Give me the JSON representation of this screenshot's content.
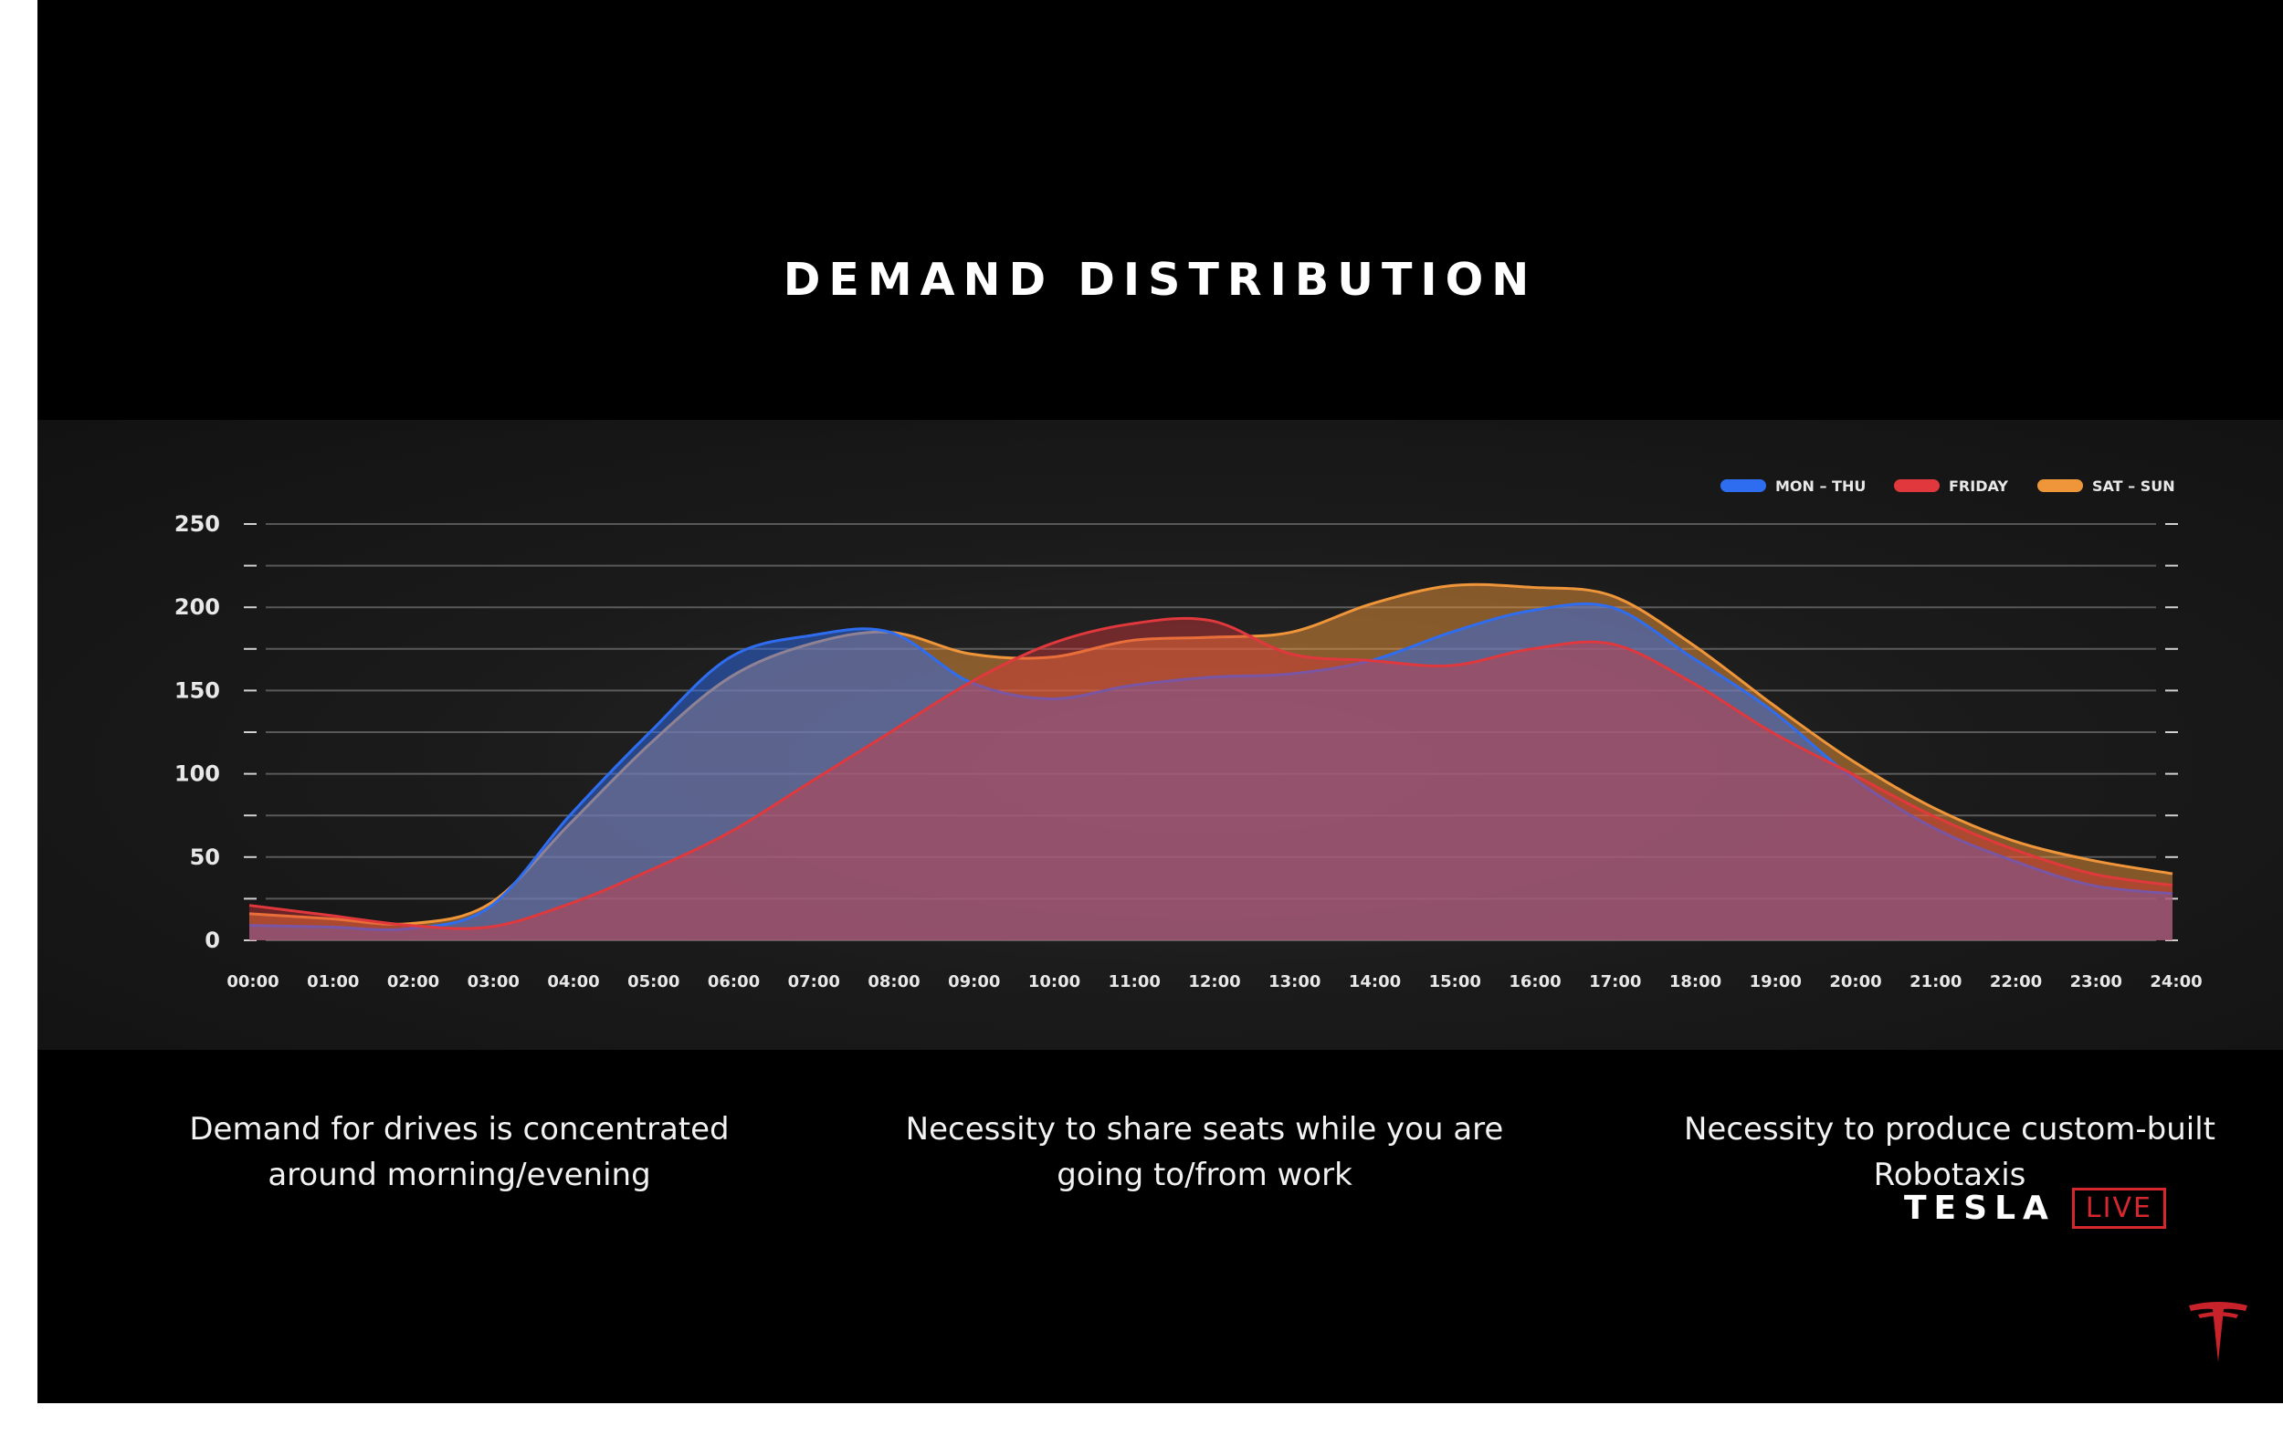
{
  "slide": {
    "title": "DEMAND DISTRIBUTION",
    "captions": [
      "Demand for drives is concentrated around morning/evening",
      "Necessity to share seats while you are going to/from work",
      "Necessity to produce custom-built Robotaxis"
    ],
    "brand": {
      "wordmark": "TESLA",
      "live_label": "LIVE",
      "logo_icon": "tesla-t-icon"
    }
  },
  "chart_data": {
    "type": "area",
    "x_categories": [
      "00:00",
      "01:00",
      "02:00",
      "03:00",
      "04:00",
      "05:00",
      "06:00",
      "07:00",
      "08:00",
      "09:00",
      "10:00",
      "11:00",
      "12:00",
      "13:00",
      "14:00",
      "15:00",
      "16:00",
      "17:00",
      "18:00",
      "19:00",
      "20:00",
      "21:00",
      "22:00",
      "23:00",
      "24:00"
    ],
    "y_ticks": [
      0,
      50,
      100,
      150,
      200,
      250
    ],
    "ylim": [
      0,
      250
    ],
    "grid": true,
    "legend_position": "top-right",
    "series": [
      {
        "name": "SAT – SUN",
        "color": "#f0963a",
        "values": [
          16,
          13,
          10,
          22,
          70,
          118,
          158,
          178,
          185,
          172,
          170,
          180,
          182,
          185,
          202,
          213,
          212,
          207,
          178,
          142,
          108,
          80,
          60,
          48,
          40
        ]
      },
      {
        "name": "MON – THU",
        "color": "#2f6df0",
        "values": [
          9,
          8,
          7,
          20,
          75,
          125,
          170,
          183,
          185,
          155,
          145,
          153,
          158,
          160,
          168,
          185,
          198,
          200,
          170,
          138,
          98,
          68,
          48,
          33,
          28
        ]
      },
      {
        "name": "FRIDAY",
        "color": "#e0383c",
        "values": [
          21,
          15,
          9,
          8,
          22,
          42,
          65,
          95,
          125,
          155,
          178,
          190,
          192,
          172,
          168,
          165,
          175,
          178,
          155,
          125,
          100,
          75,
          55,
          40,
          33
        ]
      }
    ]
  }
}
